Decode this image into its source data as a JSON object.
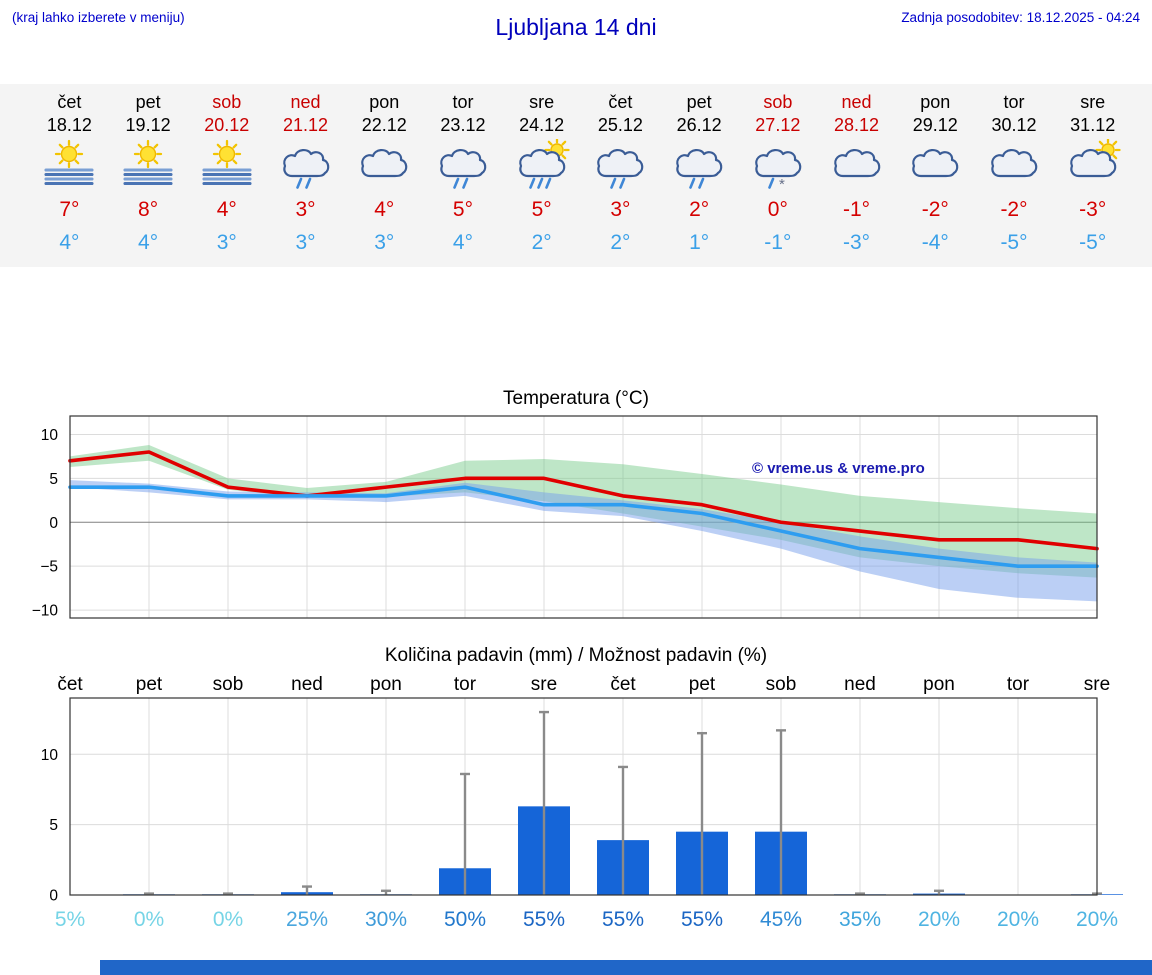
{
  "header": {
    "left_note": "(kraj lahko izberete v meniju)",
    "title": "Ljubljana 14 dni",
    "last_update": "Zadnja posodobitev: 18.12.2025 - 04:24"
  },
  "watermark": "© vreme.us & vreme.pro",
  "colors": {
    "accent_blue": "#0000cc",
    "weekend_red": "#c80000",
    "temp_high_red": "#d40000",
    "temp_low_blue": "#3aa0e8",
    "bar_blue": "#1565d8",
    "bottom_bar_blue": "#2066c8"
  },
  "forecast": {
    "days": [
      {
        "name": "čet",
        "date": "18.12",
        "weekend": false,
        "icon": "sun-fog",
        "high": "7°",
        "low": "4°"
      },
      {
        "name": "pet",
        "date": "19.12",
        "weekend": false,
        "icon": "sun-fog",
        "high": "8°",
        "low": "4°"
      },
      {
        "name": "sob",
        "date": "20.12",
        "weekend": true,
        "icon": "sun-fog",
        "high": "4°",
        "low": "3°"
      },
      {
        "name": "ned",
        "date": "21.12",
        "weekend": true,
        "icon": "cloud-rain",
        "high": "3°",
        "low": "3°"
      },
      {
        "name": "pon",
        "date": "22.12",
        "weekend": false,
        "icon": "cloud",
        "high": "4°",
        "low": "3°"
      },
      {
        "name": "tor",
        "date": "23.12",
        "weekend": false,
        "icon": "cloud-rain",
        "high": "5°",
        "low": "4°"
      },
      {
        "name": "sre",
        "date": "24.12",
        "weekend": false,
        "icon": "sun-cloud-heavy-rain",
        "high": "5°",
        "low": "2°"
      },
      {
        "name": "čet",
        "date": "25.12",
        "weekend": false,
        "icon": "cloud-rain",
        "high": "3°",
        "low": "2°"
      },
      {
        "name": "pet",
        "date": "26.12",
        "weekend": false,
        "icon": "cloud-rain",
        "high": "2°",
        "low": "1°"
      },
      {
        "name": "sob",
        "date": "27.12",
        "weekend": true,
        "icon": "cloud-sleet",
        "high": "0°",
        "low": "-1°"
      },
      {
        "name": "ned",
        "date": "28.12",
        "weekend": true,
        "icon": "cloud",
        "high": "-1°",
        "low": "-3°"
      },
      {
        "name": "pon",
        "date": "29.12",
        "weekend": false,
        "icon": "cloud",
        "high": "-2°",
        "low": "-4°"
      },
      {
        "name": "tor",
        "date": "30.12",
        "weekend": false,
        "icon": "cloud",
        "high": "-2°",
        "low": "-5°"
      },
      {
        "name": "sre",
        "date": "31.12",
        "weekend": false,
        "icon": "sun-cloud",
        "high": "-3°",
        "low": "-5°"
      }
    ]
  },
  "chart_data": [
    {
      "type": "line",
      "title": "Temperatura (°C)",
      "categories": [
        "čet",
        "pet",
        "sob",
        "ned",
        "pon",
        "tor",
        "sre",
        "čet",
        "pet",
        "sob",
        "ned",
        "pon",
        "tor",
        "sre"
      ],
      "series": [
        {
          "name": "max temp",
          "color": "#e00000",
          "values": [
            7,
            8,
            4,
            3,
            4,
            5,
            5,
            3,
            2,
            0,
            -1,
            -2,
            -2,
            -3
          ]
        },
        {
          "name": "min temp",
          "color": "#2e9df0",
          "values": [
            4,
            4,
            3,
            3,
            3,
            4,
            2,
            2,
            1,
            -1,
            -3,
            -4,
            -5,
            -5
          ]
        }
      ],
      "bands": [
        {
          "name": "max range",
          "color": "rgba(110,200,130,0.45)",
          "upper": [
            7.5,
            8.8,
            5,
            3.9,
            4.6,
            7,
            7.2,
            6.6,
            5.5,
            4.3,
            3,
            2.3,
            1.6,
            1
          ],
          "lower": [
            6.3,
            7,
            3.7,
            2.8,
            2.9,
            3.4,
            2.4,
            1,
            -0.5,
            -2,
            -4,
            -5,
            -5.8,
            -6.3
          ]
        },
        {
          "name": "min range",
          "color": "rgba(120,160,235,0.5)",
          "upper": [
            4.8,
            4.4,
            3.5,
            3.4,
            3.3,
            4.5,
            3.4,
            2.5,
            1.5,
            0,
            -1.6,
            -3,
            -4,
            -4.6
          ],
          "lower": [
            4,
            3.4,
            2.6,
            2.6,
            2.3,
            3,
            1.3,
            0.7,
            -1,
            -3,
            -5.6,
            -7.6,
            -8.6,
            -9
          ]
        }
      ],
      "yticks": [
        10,
        5,
        0,
        -5,
        -10
      ],
      "ytick_labels": [
        "10",
        "5",
        "0",
        "−5",
        "−10"
      ],
      "ylim": [
        -10.9,
        12.1
      ],
      "grid": true,
      "legend": "none"
    },
    {
      "type": "bar",
      "title": "Količina padavin (mm) / Možnost padavin (%)",
      "categories": [
        "čet",
        "pet",
        "sob",
        "ned",
        "pon",
        "tor",
        "sre",
        "čet",
        "pet",
        "sob",
        "ned",
        "pon",
        "tor",
        "sre"
      ],
      "values": [
        0,
        0.05,
        0.05,
        0.2,
        0.05,
        1.9,
        6.3,
        3.9,
        4.5,
        4.5,
        0.05,
        0.1,
        0,
        0.05
      ],
      "max_values": [
        0,
        0.1,
        0.1,
        0.6,
        0.3,
        8.6,
        13,
        9.1,
        11.5,
        11.7,
        0.1,
        0.3,
        0,
        0.1
      ],
      "yticks": [
        0,
        5,
        10
      ],
      "ytick_labels": [
        "0",
        "5",
        "10"
      ],
      "ylim": [
        0,
        14
      ],
      "xlabel": "",
      "ylabel": "",
      "probabilities": [
        {
          "label": "5%",
          "color": "#76d4e6"
        },
        {
          "label": "0%",
          "color": "#76d4e6"
        },
        {
          "label": "0%",
          "color": "#76d4e6"
        },
        {
          "label": "25%",
          "color": "#4aa6de"
        },
        {
          "label": "30%",
          "color": "#3f9bd9"
        },
        {
          "label": "50%",
          "color": "#2278cc"
        },
        {
          "label": "55%",
          "color": "#1b66c4"
        },
        {
          "label": "55%",
          "color": "#1b66c4"
        },
        {
          "label": "55%",
          "color": "#1b66c4"
        },
        {
          "label": "45%",
          "color": "#2f8ad4"
        },
        {
          "label": "35%",
          "color": "#3fa5dc"
        },
        {
          "label": "20%",
          "color": "#4fb4e2"
        },
        {
          "label": "20%",
          "color": "#4fb4e2"
        },
        {
          "label": "20%",
          "color": "#4fb4e2"
        }
      ]
    }
  ]
}
